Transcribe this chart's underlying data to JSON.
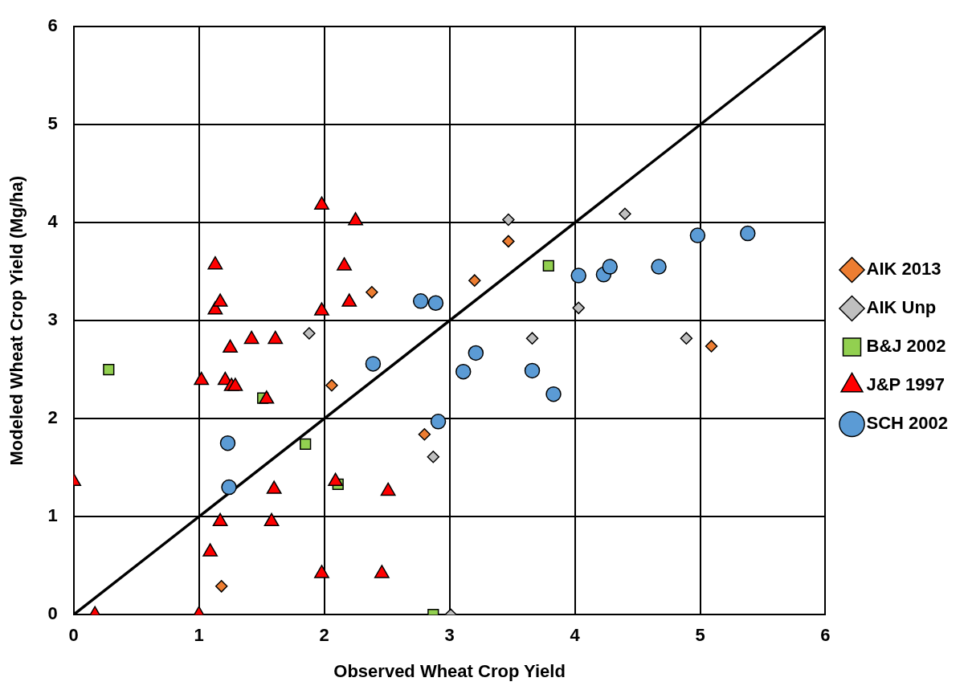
{
  "chart_data": {
    "type": "scatter",
    "xlabel": "Observed Wheat Crop Yield",
    "ylabel": "Modeled Wheat Crop Yield (Mg/ha)",
    "xlim": [
      0,
      6
    ],
    "ylim": [
      0,
      6
    ],
    "xticks": [
      0,
      1,
      2,
      3,
      4,
      5,
      6
    ],
    "yticks": [
      0,
      1,
      2,
      3,
      4,
      5,
      6
    ],
    "grid": true,
    "legend": "right",
    "series": [
      {
        "type": "line",
        "color": "#000000",
        "marker": "none",
        "line_style": "solid",
        "x": [
          0,
          6
        ],
        "values": [
          0,
          6
        ]
      },
      {
        "name": "AIK 2013",
        "color": "#ed7d31",
        "marker": "diamond",
        "x": [
          1.18,
          2.38,
          2.06,
          2.8,
          3.2,
          3.47,
          5.09
        ],
        "values": [
          0.29,
          3.29,
          2.34,
          1.84,
          3.41,
          3.81,
          2.74
        ]
      },
      {
        "name": "AIK Unp",
        "color": "#bfbfbf",
        "marker": "diamond",
        "x": [
          1.88,
          3.47,
          2.87,
          3.01,
          3.66,
          4.03,
          4.4,
          4.89
        ],
        "values": [
          2.87,
          4.03,
          1.61,
          0,
          2.82,
          3.13,
          4.09,
          2.82
        ]
      },
      {
        "name": "B&J 2002",
        "color": "#92d050",
        "marker": "square",
        "x": [
          0.28,
          1.51,
          1.85,
          2.11,
          3.79,
          2.87
        ],
        "values": [
          2.5,
          2.21,
          1.74,
          1.33,
          3.56,
          0
        ]
      },
      {
        "name": "J&P 1997",
        "color": "#ff0000",
        "marker": "triangle",
        "x": [
          0,
          0.17,
          1,
          1.09,
          1.17,
          1.58,
          1.6,
          2.09,
          2.51,
          1.98,
          2.46,
          1.02,
          1.21,
          1.26,
          1.29,
          1.25,
          1.42,
          1.61,
          1.13,
          1.17,
          1.13,
          1.98,
          2.25,
          2.16,
          2.2,
          1.98,
          1.54
        ],
        "values": [
          1.36,
          0,
          0,
          0.64,
          0.95,
          0.95,
          1.28,
          1.36,
          1.26,
          0.42,
          0.42,
          2.39,
          2.39,
          2.33,
          2.33,
          2.72,
          2.81,
          2.81,
          3.11,
          3.19,
          3.57,
          4.18,
          4.02,
          3.56,
          3.19,
          3.1,
          2.2
        ]
      },
      {
        "name": "SCH 2002",
        "color": "#5b9bd5",
        "marker": "circle",
        "x": [
          1.23,
          1.24,
          2.39,
          2.77,
          2.89,
          3.21,
          3.11,
          3.66,
          3.83,
          2.91,
          4.03,
          4.23,
          4.28,
          4.67,
          4.98,
          5.38
        ],
        "values": [
          1.75,
          1.3,
          2.56,
          3.2,
          3.18,
          2.67,
          2.48,
          2.49,
          2.25,
          1.97,
          3.46,
          3.47,
          3.55,
          3.55,
          3.87,
          3.89
        ]
      }
    ]
  }
}
